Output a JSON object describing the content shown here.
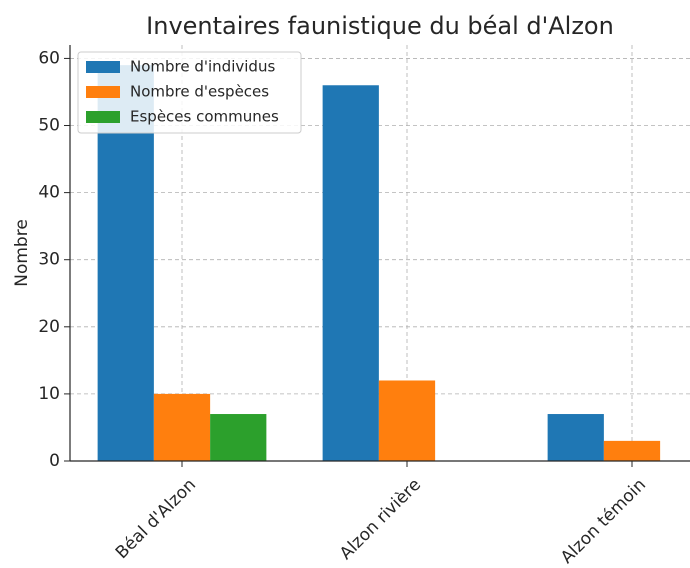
{
  "chart_data": {
    "type": "bar",
    "title": "Inventaires faunistique du béal d'Alzon",
    "y_label": "Nombre",
    "categories": [
      "Béal d'Alzon",
      "Alzon rivière",
      "Alzon témoin"
    ],
    "series": [
      {
        "name": "Nombre d'individus",
        "color": "#1f77b4",
        "values": [
          59,
          56,
          7
        ]
      },
      {
        "name": "Nombre d'espèces",
        "color": "#ff7f0e",
        "values": [
          10,
          12,
          3
        ]
      },
      {
        "name": "Espèces communes",
        "color": "#2ca02c",
        "values": [
          7,
          0,
          0
        ]
      }
    ],
    "ylim": [
      0,
      62
    ],
    "yticks": [
      0,
      10,
      20,
      30,
      40,
      50,
      60
    ],
    "grid": true,
    "legend": "upper left"
  }
}
